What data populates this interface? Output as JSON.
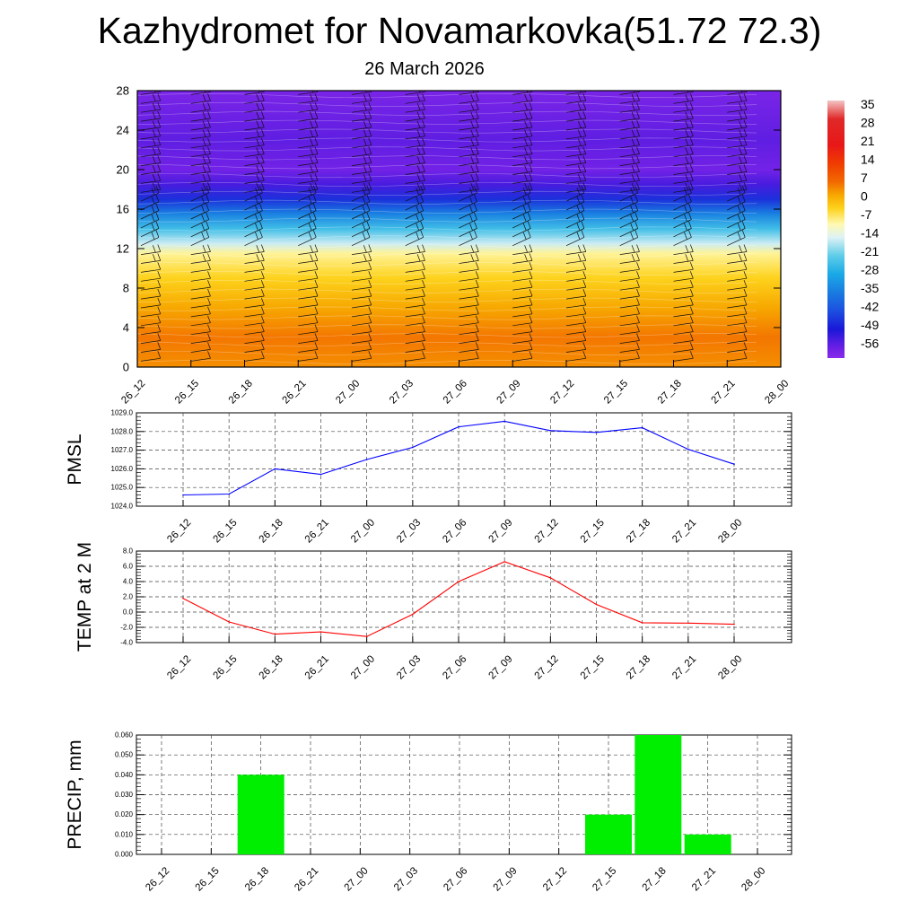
{
  "page": {
    "title": "Kazhydromet for Novamarkovka(51.72 72.3)",
    "subtitle": "26 March 2026"
  },
  "time_labels": [
    "26_12",
    "26_15",
    "26_18",
    "26_21",
    "27_00",
    "27_03",
    "27_06",
    "27_09",
    "27_12",
    "27_15",
    "27_18",
    "27_21",
    "28_00"
  ],
  "chart_data": [
    {
      "type": "heatmap",
      "name": "vertical temperature profile with wind barbs",
      "y_ticks": [
        0,
        4,
        8,
        12,
        16,
        20,
        24,
        28
      ],
      "ylim": [
        0,
        28
      ],
      "colorbar": {
        "labels": [
          "35",
          "28",
          "21",
          "14",
          "7",
          "0",
          "-7",
          "-14",
          "-21",
          "-28",
          "-35",
          "-42",
          "-49",
          "-56"
        ],
        "stops": [
          {
            "value": 38,
            "color": "#f4c4c4"
          },
          {
            "value": 31,
            "color": "#e02828"
          },
          {
            "value": 21,
            "color": "#e81818"
          },
          {
            "value": 14,
            "color": "#f03c00"
          },
          {
            "value": 7,
            "color": "#f26a00"
          },
          {
            "value": 2,
            "color": "#f7a800"
          },
          {
            "value": -3,
            "color": "#fdd21c"
          },
          {
            "value": -9,
            "color": "#fff9b0"
          },
          {
            "value": -14,
            "color": "#dff2f5"
          },
          {
            "value": -21,
            "color": "#5fcde8"
          },
          {
            "value": -28,
            "color": "#1aa9e6"
          },
          {
            "value": -35,
            "color": "#1a7ce0"
          },
          {
            "value": -42,
            "color": "#1c4fe0"
          },
          {
            "value": -49,
            "color": "#1a18d8"
          },
          {
            "value": -56,
            "color": "#6a1fe4"
          },
          {
            "value": -60,
            "color": "#8a2bea"
          }
        ]
      },
      "temperature_profile": [
        {
          "level": 0,
          "t": 4
        },
        {
          "level": 3,
          "t": 6
        },
        {
          "level": 6,
          "t": 2
        },
        {
          "level": 9,
          "t": -3
        },
        {
          "level": 11.5,
          "t": -8
        },
        {
          "level": 12.5,
          "t": -15
        },
        {
          "level": 14,
          "t": -24
        },
        {
          "level": 15.5,
          "t": -34
        },
        {
          "level": 17,
          "t": -46
        },
        {
          "level": 18.5,
          "t": -53
        },
        {
          "level": 20,
          "t": -57
        },
        {
          "level": 23,
          "t": -55
        },
        {
          "level": 28,
          "t": -58
        }
      ]
    },
    {
      "type": "line",
      "name": "PMSL",
      "ylabel": "PMSL",
      "ylim": [
        1024.0,
        1029.0
      ],
      "y_ticks": [
        "1024.0",
        "1025.0",
        "1026.0",
        "1027.0",
        "1028.0",
        "1029.0"
      ],
      "color": "#0000ff",
      "values": [
        1024.6,
        1024.65,
        1026.0,
        1025.7,
        1026.5,
        1027.15,
        1028.25,
        1028.55,
        1028.05,
        1027.95,
        1028.2,
        1027.05,
        1026.25
      ]
    },
    {
      "type": "line",
      "name": "TEMP at 2 M",
      "ylabel": "TEMP at 2 M",
      "ylim": [
        -4.0,
        8.0
      ],
      "y_ticks": [
        "-4.0",
        "-2.0",
        "0.0",
        "2.0",
        "4.0",
        "6.0",
        "8.0"
      ],
      "color": "#ff0000",
      "values": [
        1.8,
        -1.3,
        -2.9,
        -2.6,
        -3.2,
        -0.3,
        4.0,
        6.6,
        4.5,
        1.0,
        -1.4,
        -1.45,
        -1.6
      ]
    },
    {
      "type": "bar",
      "name": "PRECIP, mm",
      "ylabel": "PRECIP, mm",
      "ylim": [
        0.0,
        0.06
      ],
      "y_ticks": [
        "0.000",
        "0.010",
        "0.020",
        "0.030",
        "0.040",
        "0.050",
        "0.060"
      ],
      "color": "#00ee00",
      "values": [
        0,
        0,
        0.04,
        0,
        0,
        0,
        0,
        0,
        0,
        0.02,
        0.06,
        0.01,
        0
      ]
    }
  ]
}
